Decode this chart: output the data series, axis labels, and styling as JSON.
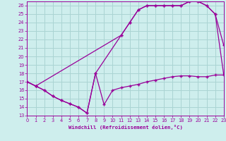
{
  "xlabel": "Windchill (Refroidissement éolien,°C)",
  "bg_color": "#ceeeed",
  "grid_color": "#aad4d3",
  "line_color": "#990099",
  "xlim": [
    0,
    23
  ],
  "ylim": [
    13,
    26.5
  ],
  "xticks": [
    0,
    1,
    2,
    3,
    4,
    5,
    6,
    7,
    8,
    9,
    10,
    11,
    12,
    13,
    14,
    15,
    16,
    17,
    18,
    19,
    20,
    21,
    22,
    23
  ],
  "yticks": [
    13,
    14,
    15,
    16,
    17,
    18,
    19,
    20,
    21,
    22,
    23,
    24,
    25,
    26
  ],
  "series1_x": [
    0,
    1,
    2,
    3,
    4,
    5,
    6,
    7,
    8,
    9,
    10,
    11,
    12,
    13,
    14,
    15,
    16,
    17,
    18,
    19,
    20,
    21,
    22,
    23
  ],
  "series1_y": [
    17.0,
    16.5,
    16.0,
    15.3,
    14.8,
    14.4,
    14.0,
    13.3,
    18.0,
    14.3,
    16.0,
    16.3,
    16.5,
    16.7,
    17.0,
    17.2,
    17.4,
    17.6,
    17.7,
    17.7,
    17.6,
    17.6,
    17.8,
    17.8
  ],
  "series2_x": [
    0,
    1,
    2,
    3,
    4,
    5,
    6,
    7,
    8,
    11,
    12,
    13,
    14,
    15,
    16,
    17,
    18,
    19,
    20,
    21,
    22,
    23
  ],
  "series2_y": [
    17.0,
    16.5,
    16.0,
    15.3,
    14.8,
    14.4,
    14.0,
    13.3,
    18.0,
    22.5,
    24.0,
    25.5,
    26.0,
    26.0,
    26.0,
    26.0,
    26.0,
    26.5,
    26.5,
    26.0,
    25.0,
    21.3
  ],
  "series3_x": [
    0,
    1,
    11,
    12,
    13,
    14,
    15,
    16,
    17,
    18,
    19,
    20,
    21,
    22,
    23
  ],
  "series3_y": [
    17.0,
    16.5,
    22.5,
    24.0,
    25.5,
    26.0,
    26.0,
    26.0,
    26.0,
    26.0,
    26.5,
    26.5,
    26.0,
    25.0,
    17.8
  ]
}
